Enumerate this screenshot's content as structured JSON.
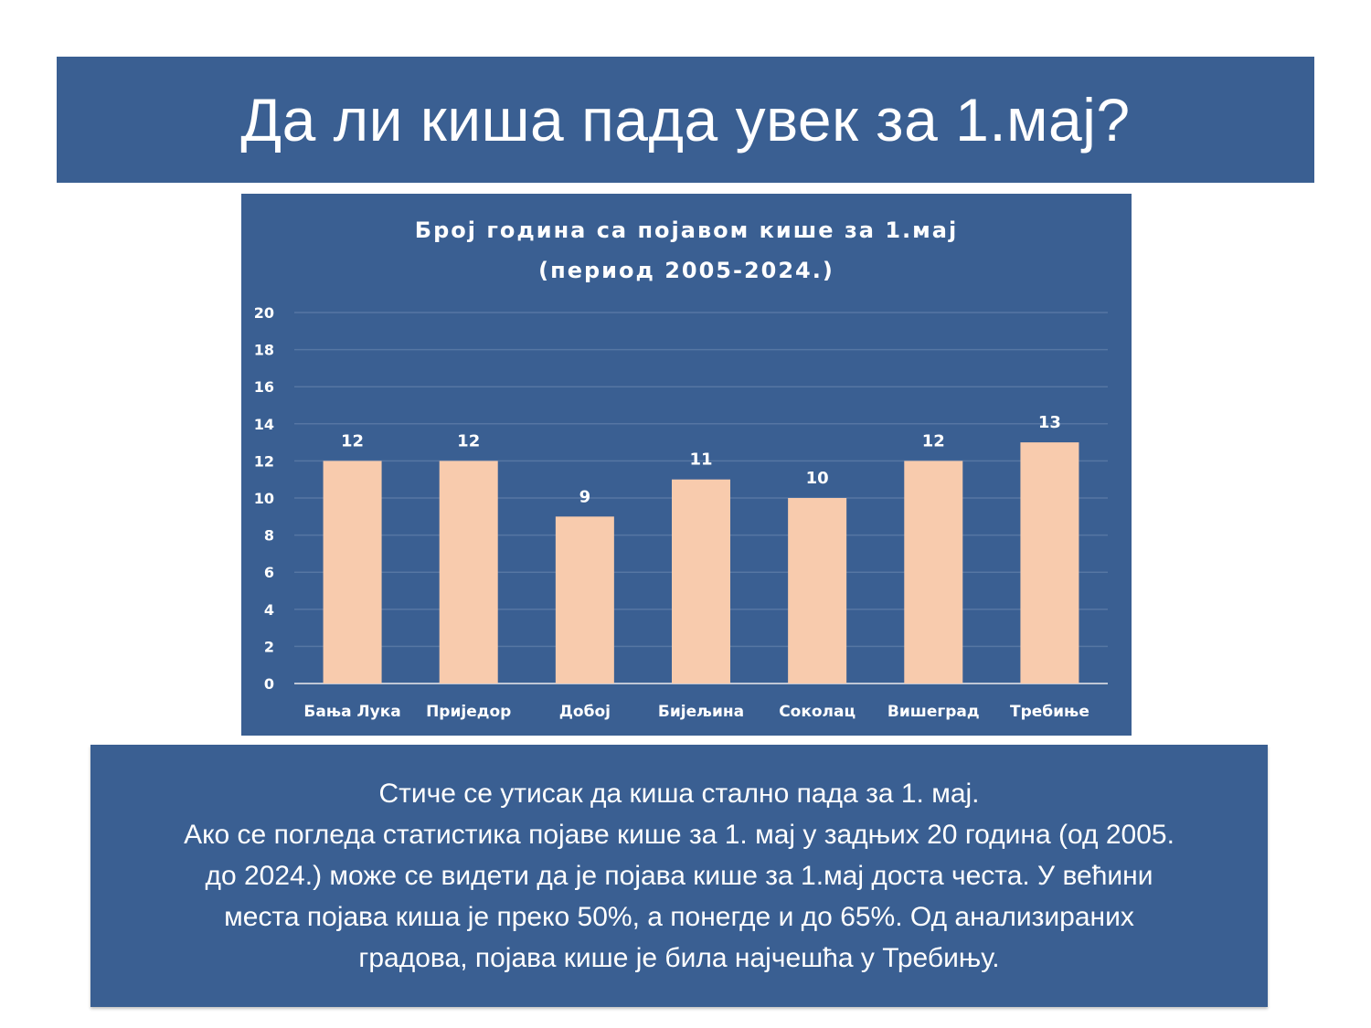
{
  "slide": {
    "title": "Да ли киша пада увек за 1.мај?"
  },
  "chart_data": {
    "type": "bar",
    "title_lines": [
      "Број година са појавом кише за 1.мај",
      "(период 2005-2024.)"
    ],
    "categories": [
      "Бања Лука",
      "Приједор",
      "Добој",
      "Бијељина",
      "Соколац",
      "Вишеград",
      "Требиње"
    ],
    "values": [
      12,
      12,
      9,
      11,
      10,
      12,
      13
    ],
    "ylim": [
      0,
      20
    ],
    "yticks": [
      "0",
      "2",
      "4",
      "6",
      "8",
      "10",
      "12",
      "14",
      "16",
      "18",
      "20"
    ],
    "grid": true,
    "legend": "none",
    "bar_color": "#f8cbad",
    "background_color": "#3a5f92"
  },
  "note": {
    "lines": [
      "Стиче се утисак да киша стално пада за 1. мај.",
      "Ако се погледа статистика појаве кише за 1. мај у задњих 20 година (од 2005.",
      "до 2024.) може се видети да је појава кише за 1.мај доста честа. У већини",
      "места појава киша је преко 50%, а понегде и до 65%. Од анализираних",
      "градова, појава кише је била најчешћа у Требињу."
    ]
  }
}
